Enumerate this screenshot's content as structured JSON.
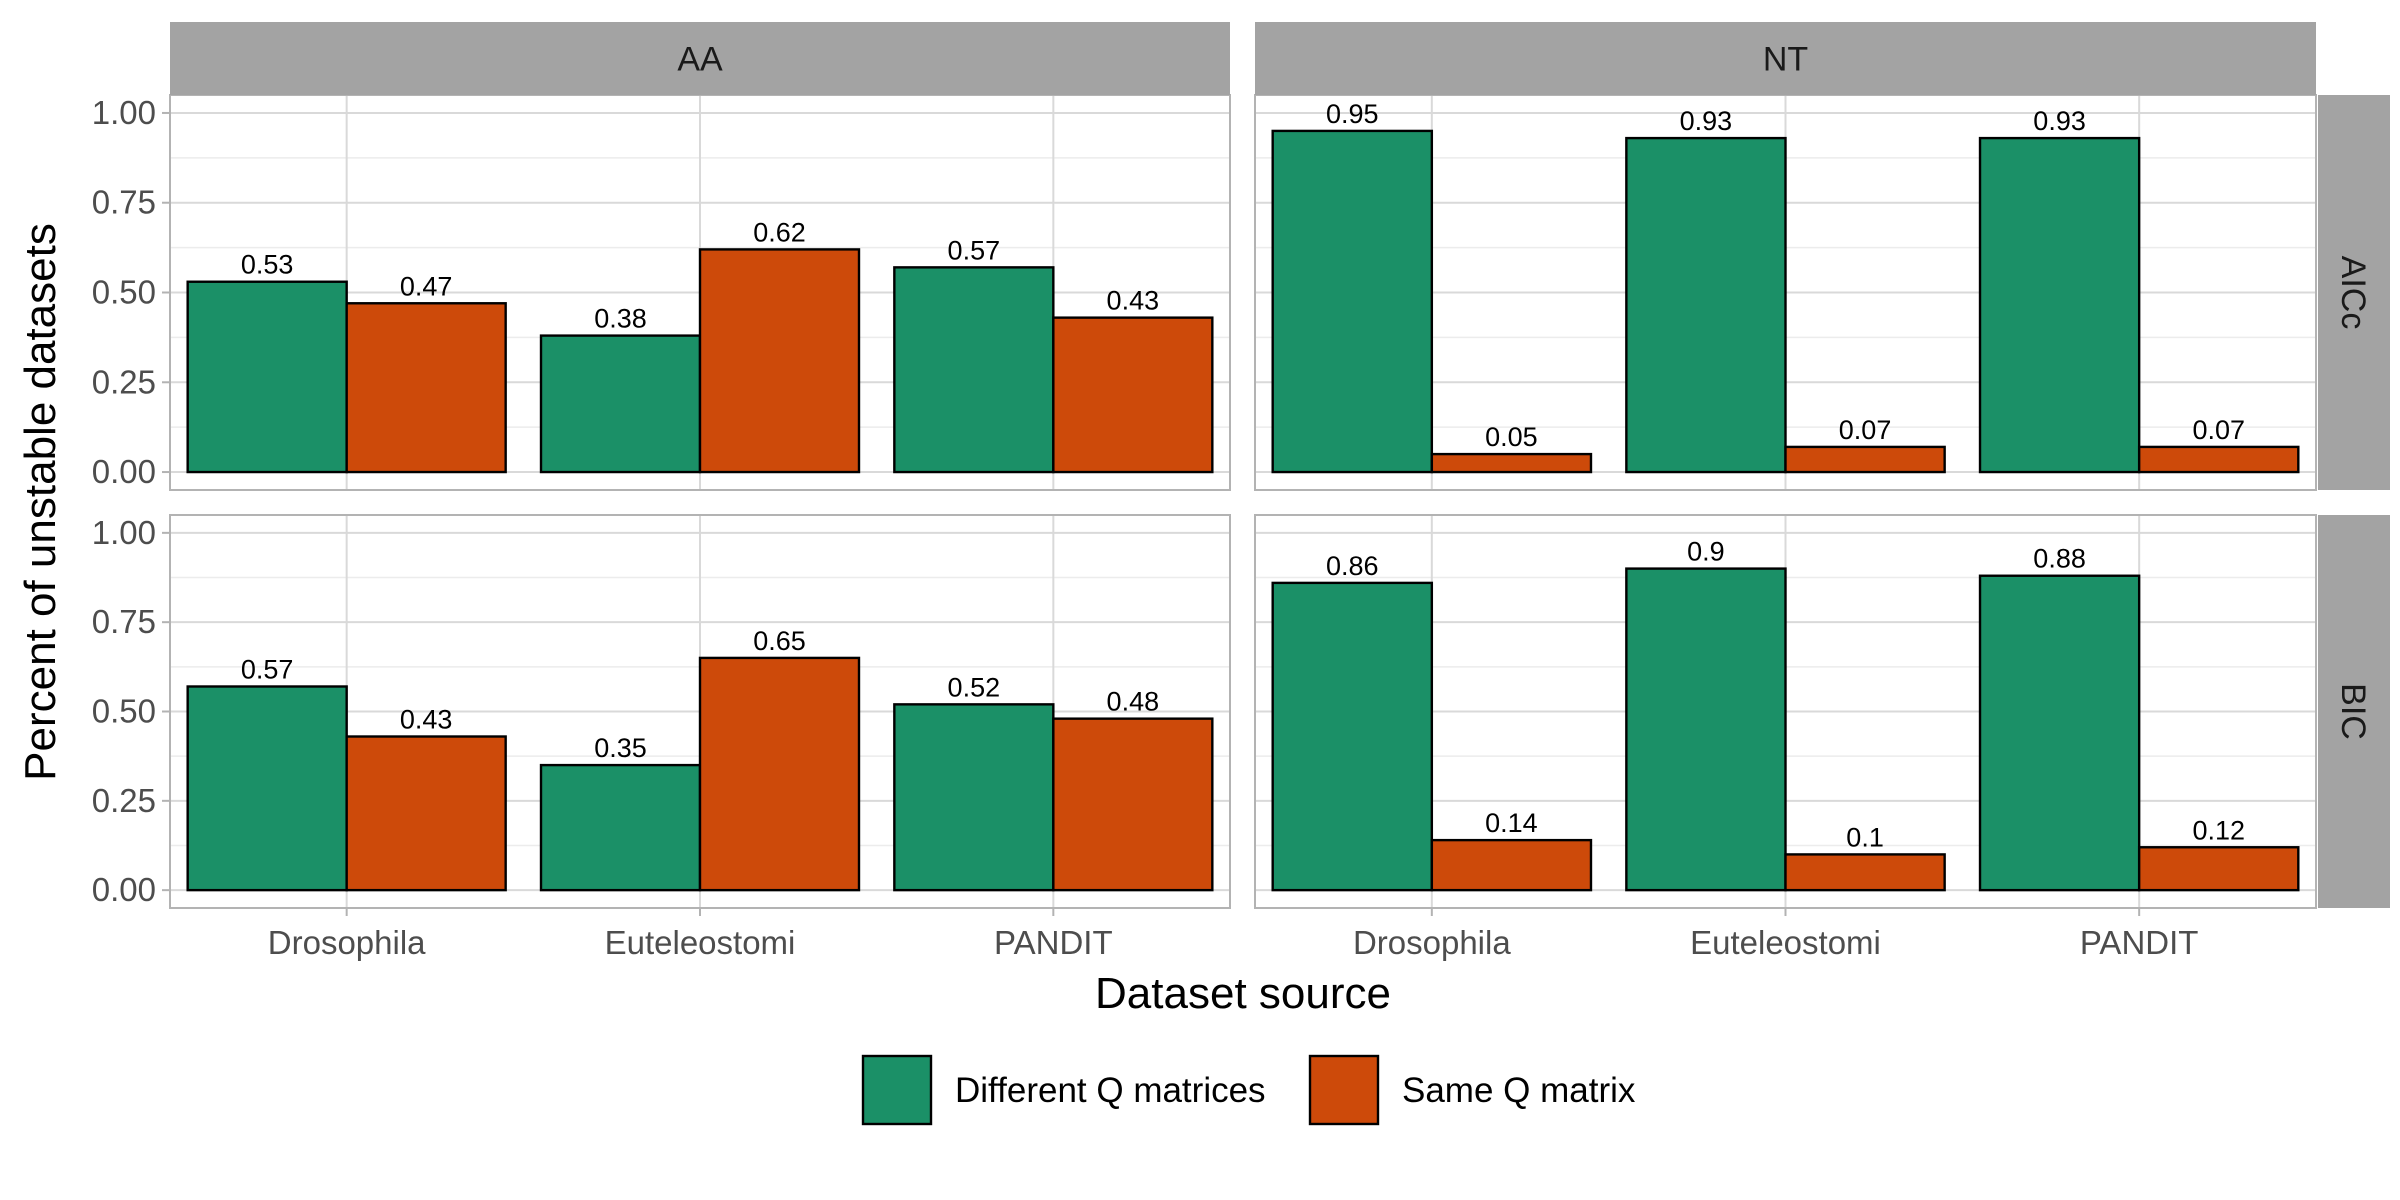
{
  "chart_data": {
    "type": "bar",
    "facets": {
      "columns": [
        "AA",
        "NT"
      ],
      "rows": [
        "AICc",
        "BIC"
      ]
    },
    "categories": [
      "Drosophila",
      "Euteleostomi",
      "PANDIT"
    ],
    "xlabel": "Dataset source",
    "ylabel": "Percent of unstable datasets",
    "ylim": [
      0,
      1
    ],
    "y_ticks": [
      "0.00",
      "0.25",
      "0.50",
      "0.75",
      "1.00"
    ],
    "grid": true,
    "legend": {
      "position": "bottom",
      "entries": [
        {
          "name": "Different Q matrices",
          "color": "#1b9067"
        },
        {
          "name": "Same Q matrix",
          "color": "#cd4a0a"
        }
      ]
    },
    "panels": [
      {
        "column": "AA",
        "row": "AICc",
        "series": [
          {
            "name": "Different Q matrices",
            "values": [
              0.53,
              0.38,
              0.57
            ],
            "labels": [
              "0.53",
              "0.38",
              "0.57"
            ]
          },
          {
            "name": "Same Q matrix",
            "values": [
              0.47,
              0.62,
              0.43
            ],
            "labels": [
              "0.47",
              "0.62",
              "0.43"
            ]
          }
        ]
      },
      {
        "column": "NT",
        "row": "AICc",
        "series": [
          {
            "name": "Different Q matrices",
            "values": [
              0.95,
              0.93,
              0.93
            ],
            "labels": [
              "0.95",
              "0.93",
              "0.93"
            ]
          },
          {
            "name": "Same Q matrix",
            "values": [
              0.05,
              0.07,
              0.07
            ],
            "labels": [
              "0.05",
              "0.07",
              "0.07"
            ]
          }
        ]
      },
      {
        "column": "AA",
        "row": "BIC",
        "series": [
          {
            "name": "Different Q matrices",
            "values": [
              0.57,
              0.35,
              0.52
            ],
            "labels": [
              "0.57",
              "0.35",
              "0.52"
            ]
          },
          {
            "name": "Same Q matrix",
            "values": [
              0.43,
              0.65,
              0.48
            ],
            "labels": [
              "0.43",
              "0.65",
              "0.48"
            ]
          }
        ]
      },
      {
        "column": "NT",
        "row": "BIC",
        "series": [
          {
            "name": "Different Q matrices",
            "values": [
              0.86,
              0.9,
              0.88
            ],
            "labels": [
              "0.86",
              "0.9",
              "0.88"
            ]
          },
          {
            "name": "Same Q matrix",
            "values": [
              0.14,
              0.1,
              0.12
            ],
            "labels": [
              "0.14",
              "0.1",
              "0.12"
            ]
          }
        ]
      }
    ]
  }
}
